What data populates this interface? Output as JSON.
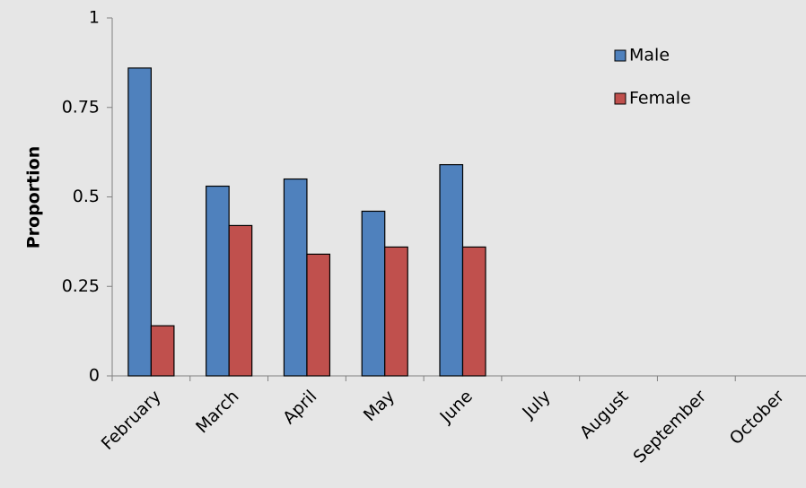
{
  "chart_data": {
    "type": "bar",
    "categories": [
      "February",
      "March",
      "April",
      "May",
      "June",
      "July",
      "August",
      "September",
      "October"
    ],
    "series": [
      {
        "name": "Male",
        "color": "#4f81bd",
        "values": [
          0.86,
          0.53,
          0.55,
          0.46,
          0.59,
          null,
          null,
          null,
          null
        ]
      },
      {
        "name": "Female",
        "color": "#c0504d",
        "values": [
          0.14,
          0.42,
          0.34,
          0.36,
          0.36,
          null,
          null,
          null,
          null
        ]
      }
    ],
    "y_label": "Proportion",
    "ylim": [
      0,
      1
    ],
    "yticks": [
      0,
      0.25,
      0.5,
      0.75,
      1
    ],
    "legend": "upper right"
  }
}
